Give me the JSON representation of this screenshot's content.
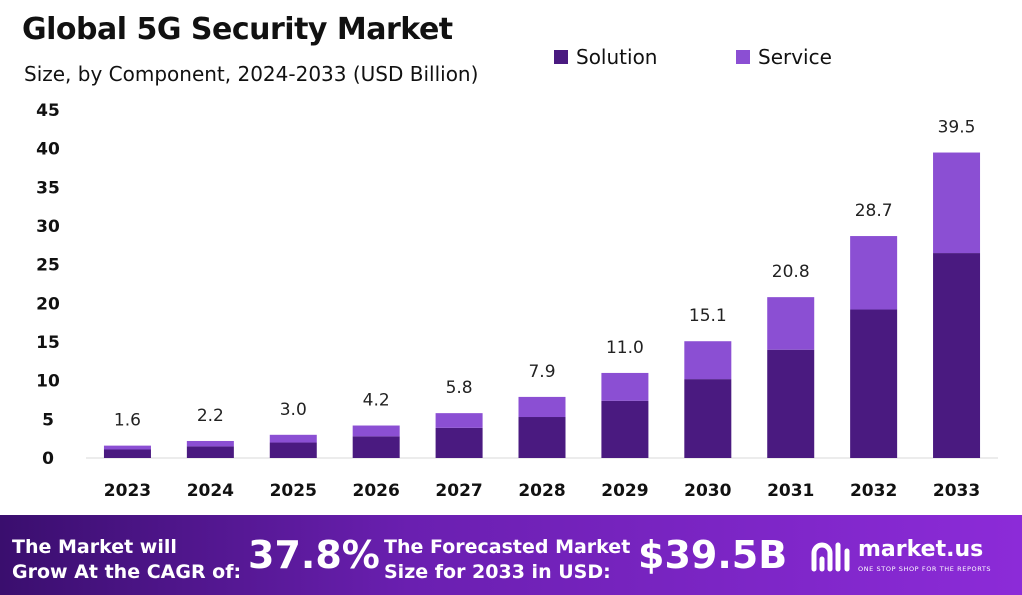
{
  "chart_data": {
    "type": "bar",
    "stacked": true,
    "title": "Global 5G Security Market",
    "subtitle": "Size, by Component, 2024-2033 (USD Billion)",
    "categories": [
      "2023",
      "2024",
      "2025",
      "2026",
      "2027",
      "2028",
      "2029",
      "2030",
      "2031",
      "2032",
      "2033"
    ],
    "totals": [
      "1.6",
      "2.2",
      "3.0",
      "4.2",
      "5.8",
      "7.9",
      "11.0",
      "15.1",
      "20.8",
      "28.7",
      "39.5"
    ],
    "series": [
      {
        "name": "Solution",
        "color": "#4a1a80",
        "values": [
          1.1,
          1.5,
          2.0,
          2.8,
          3.9,
          5.3,
          7.4,
          10.2,
          14.0,
          19.2,
          26.5
        ]
      },
      {
        "name": "Service",
        "color": "#8b4fd3",
        "values": [
          0.5,
          0.7,
          1.0,
          1.4,
          1.9,
          2.6,
          3.6,
          4.9,
          6.8,
          9.5,
          13.0
        ]
      }
    ],
    "ylim": [
      0,
      45
    ],
    "yticks": [
      "0",
      "5",
      "10",
      "15",
      "20",
      "25",
      "30",
      "35",
      "40",
      "45"
    ],
    "legend_position": "top-right",
    "grid": false
  },
  "footer": {
    "cagr_line1": "The Market will",
    "cagr_line2": "Grow At the CAGR of:",
    "cagr_value": "37.8%",
    "forecast_line1": "The Forecasted Market",
    "forecast_line2": "Size for 2033 in USD:",
    "forecast_value": "$39.5B",
    "brand_name": "market.us",
    "brand_tagline": "ONE STOP SHOP FOR THE REPORTS",
    "background_colors": [
      "#3a0e6e",
      "#8c2bd8"
    ]
  }
}
